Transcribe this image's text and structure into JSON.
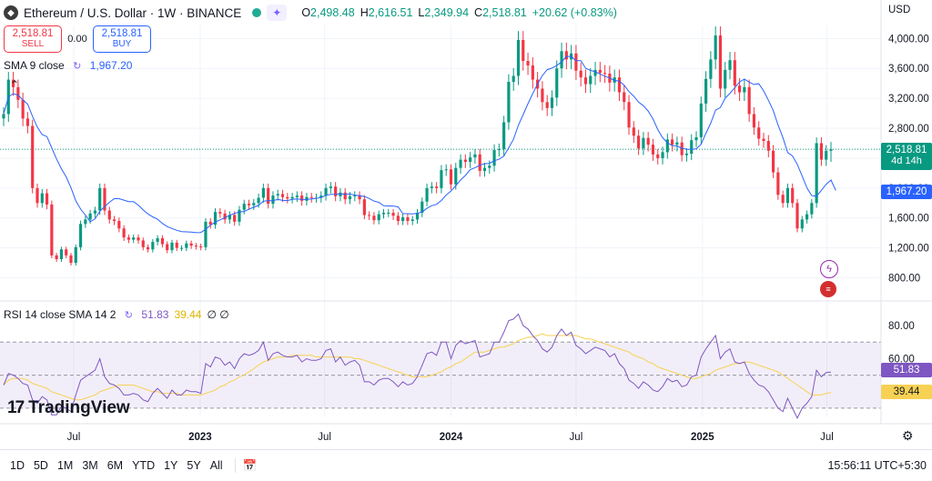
{
  "header": {
    "symbol": "Ethereum / U.S. Dollar · 1W · BINANCE",
    "ohlc": [
      {
        "k": "O",
        "v": "2,498.48"
      },
      {
        "k": "H",
        "v": "2,616.51"
      },
      {
        "k": "L",
        "v": "2,349.94"
      },
      {
        "k": "C",
        "v": "2,518.81"
      },
      {
        "k": "",
        "v": "+20.62 (+0.83%)"
      }
    ]
  },
  "trade": {
    "sell_price": "2,518.81",
    "sell_label": "SELL",
    "spread": "0.00",
    "buy_price": "2,518.81",
    "buy_label": "BUY"
  },
  "sma": {
    "label": "SMA 9 close",
    "value": "1,967.20"
  },
  "rsi": {
    "label": "RSI 14 close SMA 14 2",
    "value": "51.83",
    "sma_value": "39.44",
    "extra": "∅ ∅"
  },
  "currency": "USD",
  "price_badge": {
    "price": "2,518.81",
    "countdown": "4d 14h"
  },
  "sma_badge": "1,967.20",
  "rsi_badge": "51.83",
  "rsi_sma_badge": "39.44",
  "brand": "TradingView",
  "timeframes": [
    "1D",
    "5D",
    "1M",
    "3M",
    "6M",
    "YTD",
    "1Y",
    "5Y",
    "All"
  ],
  "clock": "15:56:11 UTC+5:30",
  "colors": {
    "up": "#089981",
    "down": "#f23645",
    "sma": "#2962ff",
    "rsi": "#7e57c2",
    "rsi_sma": "#f7d154"
  },
  "chart_data": [
    {
      "type": "candlestick",
      "title": "Ethereum / U.S. Dollar · 1W · BINANCE",
      "y_ticks": [
        800,
        1200,
        1600,
        2000,
        2400,
        2800,
        3200,
        3600,
        4000
      ],
      "y_tick_labels": [
        "800.00",
        "1,200.00",
        "1,600.00",
        "2,000.00",
        "2,400.00",
        "2,800.00",
        "3,200.00",
        "3,600.00",
        "4,000.00"
      ],
      "x_tick_labels": [
        "Jul",
        "2023",
        "Jul",
        "2024",
        "Jul",
        "2025",
        "Jul"
      ],
      "ylim": [
        600,
        4150
      ],
      "start": "2022-03-21",
      "period": "1W",
      "sma_period": 9,
      "last": {
        "open": 2498.48,
        "high": 2616.51,
        "low": 2349.94,
        "close": 2518.81
      },
      "close": [
        2990,
        3450,
        3350,
        3180,
        2930,
        2830,
        2000,
        1800,
        1930,
        1780,
        1100,
        1050,
        1180,
        1100,
        1000,
        1210,
        1520,
        1580,
        1660,
        1700,
        2000,
        1700,
        1580,
        1560,
        1460,
        1340,
        1310,
        1340,
        1300,
        1210,
        1180,
        1280,
        1330,
        1250,
        1170,
        1270,
        1200,
        1200,
        1260,
        1230,
        1220,
        1210,
        1550,
        1510,
        1680,
        1660,
        1580,
        1640,
        1550,
        1710,
        1790,
        1770,
        1800,
        1870,
        2000,
        1790,
        1900,
        1920,
        1880,
        1860,
        1880,
        1900,
        1830,
        1880,
        1870,
        1870,
        1900,
        2000,
        2020,
        1890,
        1940,
        1850,
        1890,
        1900,
        1850,
        1640,
        1630,
        1570,
        1650,
        1670,
        1670,
        1630,
        1560,
        1610,
        1560,
        1580,
        1670,
        1820,
        2000,
        2020,
        2000,
        2240,
        2250,
        2050,
        2270,
        2380,
        2350,
        2410,
        2450,
        2230,
        2270,
        2300,
        2510,
        2520,
        2880,
        3420,
        3500,
        3980,
        3700,
        3640,
        3450,
        3330,
        3150,
        3070,
        3210,
        3600,
        3830,
        3720,
        3800,
        3570,
        3480,
        3390,
        3500,
        3580,
        3540,
        3530,
        3410,
        3480,
        3280,
        3150,
        2810,
        2700,
        2530,
        2670,
        2580,
        2450,
        2400,
        2480,
        2650,
        2580,
        2610,
        2440,
        2460,
        2640,
        2680,
        3130,
        3460,
        3720,
        4040,
        3330,
        3580,
        3710,
        3370,
        3280,
        3350,
        2990,
        2810,
        2660,
        2630,
        2500,
        2210,
        1910,
        1800,
        2000,
        1800,
        1460,
        1580,
        1650,
        1800,
        2600,
        2380,
        2498.48,
        2518.81
      ],
      "sma9": [
        2990,
        3220,
        3263,
        3243,
        3180,
        3122,
        2960,
        2815,
        2716,
        2689,
        2539,
        2389,
        2259,
        2150,
        2006,
        1829,
        1718,
        1640,
        1549,
        1587,
        1691,
        1751,
        1811,
        1858,
        1858,
        1839,
        1819,
        1818,
        1772,
        1708,
        1654,
        1615,
        1583,
        1528,
        1485,
        1460,
        1435,
        1418,
        1415,
        1412,
        1404,
        1406,
        1450,
        1505,
        1545,
        1575,
        1605,
        1637,
        1661,
        1681,
        1687,
        1717,
        1744,
        1768,
        1826,
        1832,
        1832,
        1849,
        1835,
        1833,
        1849,
        1856,
        1847,
        1848,
        1853,
        1863,
        1874,
        1903,
        1916,
        1918,
        1924,
        1916,
        1923,
        1906,
        1900,
        1887,
        1861,
        1826,
        1810,
        1764,
        1761,
        1760,
        1749,
        1659,
        1658,
        1655,
        1663,
        1680,
        1729,
        1765,
        1782,
        1834,
        1906,
        1962,
        2031,
        2109,
        2168,
        2246,
        2273,
        2306,
        2326,
        2330,
        2366,
        2385,
        2427,
        2538,
        2654,
        2838,
        2983,
        3129,
        3263,
        3391,
        3504,
        3583,
        3604,
        3641,
        3686,
        3761,
        3760,
        3703,
        3704,
        3602,
        3574,
        3555,
        3525,
        3496,
        3472,
        3437,
        3431,
        3376,
        3291,
        3230,
        3150,
        3101,
        3029,
        2923,
        2782,
        2674,
        2606,
        2568,
        2564,
        2532,
        2520,
        2517,
        2526,
        2585,
        2732,
        2868,
        3041,
        3077,
        3200,
        3267,
        3340,
        3419,
        3457,
        3416,
        3385,
        3395,
        3300,
        3174,
        3036,
        2842,
        2675,
        2475,
        2430,
        2317,
        2163,
        2002,
        1899,
        1891,
        1969,
        2050,
        2108,
        1967.2
      ],
      "y_label": "",
      "x_label": ""
    },
    {
      "type": "line",
      "title": "RSI 14 close SMA 14 2",
      "y_ticks": [
        60,
        80
      ],
      "y_tick_labels": [
        "60.00",
        "80.00"
      ],
      "bands": [
        30,
        50,
        70
      ],
      "ylim": [
        25,
        90
      ],
      "series": [
        {
          "name": "RSI",
          "values": [
            44,
            51,
            50,
            48,
            45,
            44,
            35,
            33,
            37,
            35,
            26,
            26,
            31,
            30,
            28,
            38,
            47,
            49,
            51,
            53,
            60,
            49,
            45,
            44,
            42,
            38,
            38,
            39,
            38,
            35,
            34,
            39,
            42,
            39,
            36,
            41,
            38,
            38,
            41,
            40,
            40,
            39,
            57,
            55,
            61,
            60,
            56,
            58,
            54,
            60,
            63,
            62,
            63,
            65,
            70,
            59,
            63,
            64,
            62,
            61,
            61,
            62,
            58,
            60,
            59,
            59,
            60,
            65,
            66,
            58,
            61,
            56,
            58,
            59,
            56,
            46,
            46,
            44,
            47,
            48,
            48,
            46,
            43,
            46,
            44,
            45,
            49,
            56,
            63,
            64,
            62,
            70,
            70,
            60,
            68,
            71,
            69,
            70,
            71,
            61,
            62,
            63,
            70,
            70,
            76,
            83,
            84,
            87,
            80,
            78,
            74,
            71,
            66,
            64,
            67,
            74,
            78,
            74,
            76,
            68,
            66,
            63,
            65,
            67,
            66,
            65,
            61,
            63,
            57,
            54,
            47,
            45,
            42,
            46,
            44,
            41,
            40,
            43,
            48,
            46,
            47,
            43,
            44,
            49,
            50,
            61,
            66,
            70,
            74,
            60,
            64,
            66,
            58,
            57,
            58,
            51,
            47,
            44,
            43,
            40,
            35,
            30,
            28,
            36,
            30,
            24,
            30,
            33,
            37,
            53,
            49,
            51.6,
            51.83
          ]
        },
        {
          "name": "SMA",
          "values": [
            44,
            47,
            48,
            48,
            48,
            47,
            45,
            44,
            43,
            42,
            40,
            39,
            38,
            37,
            36,
            35,
            35,
            36,
            37,
            38,
            40,
            41,
            42,
            43,
            44,
            44,
            44,
            44,
            43,
            42,
            41,
            40,
            40,
            39,
            39,
            39,
            39,
            38,
            38,
            38,
            38,
            38,
            39,
            40,
            41,
            43,
            44,
            46,
            47,
            49,
            50,
            52,
            54,
            56,
            58,
            59,
            60,
            61,
            61,
            61,
            62,
            62,
            62,
            62,
            62,
            61,
            61,
            61,
            61,
            61,
            61,
            61,
            61,
            60,
            60,
            59,
            58,
            57,
            56,
            55,
            54,
            53,
            52,
            51,
            50,
            49,
            49,
            49,
            49,
            50,
            51,
            52,
            54,
            55,
            57,
            58,
            60,
            62,
            64,
            64,
            64,
            65,
            66,
            67,
            67,
            68,
            69,
            71,
            72,
            73,
            73,
            74,
            75,
            74,
            74,
            74,
            74,
            74,
            74,
            74,
            73,
            72,
            72,
            71,
            70,
            69,
            68,
            67,
            66,
            65,
            64,
            62,
            61,
            60,
            58,
            57,
            55,
            54,
            53,
            52,
            51,
            50,
            49,
            48,
            48,
            49,
            50,
            51,
            53,
            54,
            55,
            56,
            57,
            57,
            58,
            58,
            57,
            56,
            55,
            54,
            53,
            52,
            50,
            48,
            46,
            44,
            42,
            40,
            38,
            38,
            38,
            39,
            39.44
          ]
        }
      ],
      "y_label": "",
      "x_label": ""
    }
  ]
}
